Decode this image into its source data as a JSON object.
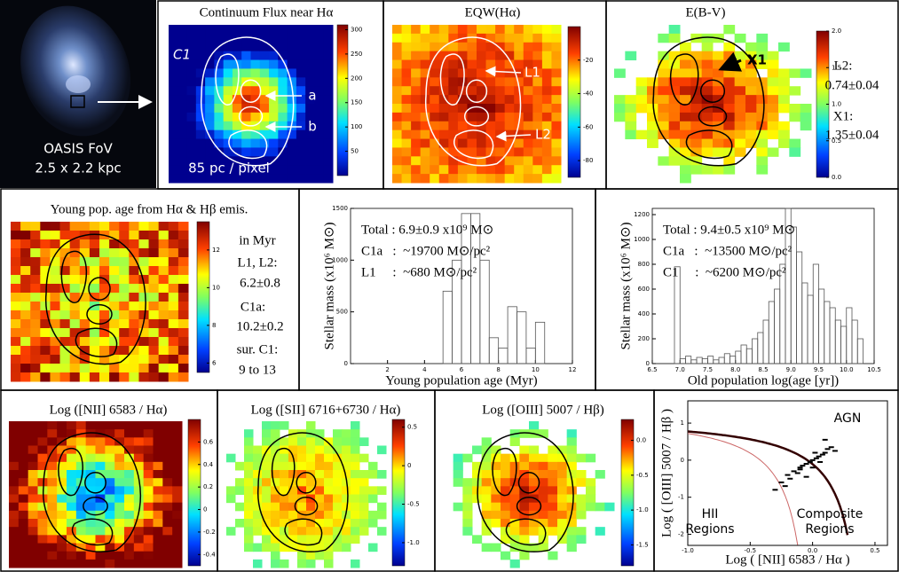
{
  "galaxy": {
    "label1": "OASIS FoV",
    "label2": "2.5 x 2.2 kpc"
  },
  "maps": [
    {
      "title": "Continuum Flux near Hα",
      "annotations": [
        "C1",
        "a",
        "b",
        "85 pc / pixel"
      ],
      "colorbar": {
        "lim": [
          0,
          310
        ],
        "ticks": [
          300,
          250,
          200,
          150,
          100,
          50
        ]
      }
    },
    {
      "title": "EQW(Hα)",
      "annotations": [
        "L1",
        "L2"
      ],
      "colorbar": {
        "lim": [
          -90,
          0
        ],
        "ticks": [
          -20,
          -40,
          -60,
          -80
        ]
      }
    },
    {
      "title": "E(B-V)",
      "annotations": [
        "X1",
        "L2:",
        "0.74±0.04",
        "X1:",
        "1.35±0.04"
      ],
      "colorbar": {
        "lim": [
          0,
          2
        ],
        "ticks": [
          {
            "value": 2,
            "label": "2.0"
          },
          1.5,
          {
            "value": 1,
            "label": "1.0"
          },
          0.5,
          {
            "value": 0,
            "label": "0.0"
          }
        ]
      }
    },
    {
      "title": "Young pop. age from Hα & Hβ emis.",
      "annotations": [
        "in Myr",
        "L1, L2:",
        "6.2±0.8",
        "C1a:",
        "10.2±0.2",
        "sur. C1:",
        "9 to 13"
      ],
      "colorbar": {
        "lim": [
          5.5,
          13.5
        ],
        "ticks": [
          12,
          10,
          8,
          6
        ]
      }
    },
    {
      "title": "Log ([NII] 6583 / Hα)",
      "annotations": [],
      "colorbar": {
        "lim": [
          -0.5,
          0.8
        ],
        "ticks": [
          0.6,
          0.4,
          0.2,
          0,
          -0.2,
          -0.4
        ]
      }
    },
    {
      "title": "Log ([SII] 6716+6730 / Hα)",
      "annotations": [],
      "colorbar": {
        "lim": [
          -1.3,
          0.6
        ],
        "ticks": [
          0.5,
          0,
          -0.5,
          {
            "value": -1,
            "label": "-1.0"
          }
        ]
      }
    },
    {
      "title": "Log ([OIII] 5007 / Hβ)",
      "annotations": [],
      "colorbar": {
        "lim": [
          -1.8,
          0.3
        ],
        "ticks": [
          {
            "value": 0,
            "label": "0.0"
          },
          -0.5,
          {
            "value": -1,
            "label": "-1.0"
          },
          -1.5
        ]
      }
    }
  ],
  "histograms": [
    {
      "ylabel": "Stellar mass (x10⁶ M⊙)",
      "xlabel": "Young population  age (Myr)",
      "notes": [
        "Total : 6.9±0.9 x10⁹ M⊙",
        "C1a   :  ~19700 M⊙/pc²",
        "L1     :  ~680 M⊙/pc²"
      ],
      "bins": [
        5,
        5.5,
        6,
        6.5,
        7,
        7.5,
        8,
        8.5,
        9,
        9.5,
        10,
        10.5
      ],
      "values": [
        700,
        1000,
        1450,
        1450,
        1000,
        250,
        150,
        550,
        500,
        150,
        400
      ],
      "xlim": [
        0,
        12
      ],
      "ylim": [
        0,
        1500
      ],
      "xticks": [
        2,
        4,
        6,
        8,
        10,
        12
      ],
      "yticks": [
        0,
        500,
        1000,
        1500
      ]
    },
    {
      "ylabel": "Stellar mass (x10⁶ M⊙)",
      "xlabel": "Old population  log(age [yr])",
      "notes": [
        "Total : 9.4±0.5 x10⁹ M⊙",
        "C1a   :  ~13500 M⊙/pc²",
        "C1     :  ~6200 M⊙/pc²"
      ],
      "bins": [
        6.9,
        7.0,
        7.1,
        7.2,
        7.3,
        7.4,
        7.5,
        7.6,
        7.7,
        7.8,
        7.9,
        8.0,
        8.1,
        8.2,
        8.3,
        8.4,
        8.5,
        8.6,
        8.7,
        8.8,
        8.9,
        9.0,
        9.1,
        9.2,
        9.3,
        9.4,
        9.5,
        9.6,
        9.7,
        9.8,
        9.9,
        10.0,
        10.1,
        10.2,
        10.3
      ],
      "values": [
        780,
        40,
        60,
        30,
        50,
        40,
        60,
        30,
        50,
        80,
        60,
        100,
        150,
        120,
        200,
        250,
        350,
        500,
        600,
        800,
        1250,
        1100,
        900,
        650,
        550,
        800,
        600,
        500,
        450,
        350,
        300,
        450,
        350,
        200
      ],
      "xlim": [
        6.5,
        10.5
      ],
      "ylim": [
        0,
        1250
      ],
      "xticks": [
        6.5,
        {
          "value": 7,
          "label": "7.0"
        },
        7.5,
        {
          "value": 8,
          "label": "8.0"
        },
        8.5,
        {
          "value": 9,
          "label": "9.0"
        },
        9.5,
        {
          "value": 10,
          "label": "10.0"
        },
        10.5
      ],
      "yticks": [
        0,
        200,
        400,
        600,
        800,
        1000,
        1200
      ]
    }
  ],
  "bpt": {
    "ylabel": "Log ( [OIII] 5007 / Hβ )",
    "xlabel": "Log ( [NII] 6583 / Hα )",
    "labels": [
      "AGN",
      "HII",
      "Regions",
      "Composite",
      "Regions"
    ],
    "xlim": [
      -1,
      0.6
    ],
    "ylim": [
      -2.3,
      1.6
    ],
    "xticks": [
      {
        "value": -1,
        "label": "-1.0"
      },
      -0.5,
      {
        "value": 0,
        "label": "0.0"
      },
      0.5
    ],
    "yticks": [
      1,
      0,
      -1,
      -2
    ],
    "x": [
      -0.25,
      -0.2,
      -0.15,
      -0.1,
      -0.05,
      0,
      0.05,
      0.1,
      -0.18,
      -0.12,
      -0.08,
      -0.02,
      0.03,
      0.08,
      0.12,
      -0.22,
      -0.1,
      0,
      0.06,
      0.15,
      -0.3,
      -0.05,
      0.02,
      0.18,
      0.1
    ],
    "y": [
      -0.6,
      -0.4,
      -0.3,
      -0.2,
      -0.1,
      0,
      0.1,
      0.2,
      -0.5,
      -0.35,
      -0.15,
      -0.05,
      0.05,
      0.15,
      0.3,
      -0.7,
      -0.25,
      -0.2,
      -0.05,
      0.35,
      -0.8,
      -0.45,
      0.2,
      0.25,
      0.55
    ]
  }
}
